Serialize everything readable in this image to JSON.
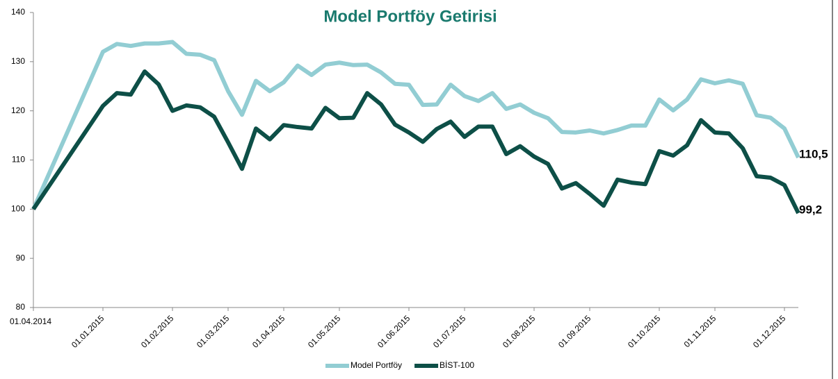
{
  "chart_data": {
    "type": "line",
    "title": "Model Portföy Getirisi",
    "categories": [
      "01.04.2014",
      null,
      null,
      null,
      null,
      "01.01.2015",
      null,
      null,
      null,
      null,
      "01.02.2015",
      null,
      null,
      null,
      "01.03.2015",
      null,
      null,
      null,
      "01.04.2015",
      null,
      null,
      null,
      "01.05.2015",
      null,
      null,
      null,
      null,
      "01.06.2015",
      null,
      null,
      null,
      "01.07.2015",
      null,
      null,
      null,
      null,
      "01.08.2015",
      null,
      null,
      null,
      "01.09.2015",
      null,
      null,
      null,
      null,
      "01.10.2015",
      null,
      null,
      null,
      "01.11.2015",
      null,
      null,
      null,
      null,
      "01.12.2015",
      null
    ],
    "series": [
      {
        "name": "Model Portföy",
        "color": "#92cdd3",
        "values": [
          100,
          106.4,
          112.8,
          119.2,
          125.6,
          132,
          133.6,
          133.2,
          133.7,
          133.7,
          134,
          131.6,
          131.4,
          130.3,
          124,
          119.2,
          126.1,
          124,
          125.8,
          129.2,
          127.3,
          129.4,
          129.8,
          129.3,
          129.4,
          127.8,
          125.5,
          125.3,
          121.2,
          121.3,
          125.3,
          123,
          122,
          123.6,
          120.4,
          121.3,
          119.6,
          118.5,
          115.7,
          115.6,
          116,
          115.4,
          116.1,
          117,
          117,
          122.3,
          120.1,
          122.3,
          126.4,
          125.6,
          126.2,
          125.5,
          119.1,
          118.6,
          116.4,
          110.5
        ],
        "value_labels": [
          null,
          null,
          null,
          null,
          null,
          null,
          null,
          null,
          null,
          null,
          null,
          null,
          null,
          null,
          null,
          null,
          null,
          null,
          null,
          null,
          null,
          null,
          null,
          null,
          null,
          null,
          null,
          null,
          null,
          null,
          null,
          null,
          null,
          null,
          null,
          null,
          null,
          null,
          null,
          null,
          null,
          null,
          null,
          null,
          null,
          null,
          null,
          null,
          null,
          null,
          null,
          null,
          null,
          null,
          null,
          "110,5"
        ]
      },
      {
        "name": "BİST-100",
        "color": "#0d4f47",
        "values": [
          100,
          104.2,
          108.4,
          112.6,
          116.8,
          121,
          123.6,
          123.3,
          128,
          125.4,
          120,
          121.1,
          120.7,
          118.8,
          113.6,
          108.2,
          116.4,
          114.2,
          117.1,
          116.7,
          116.4,
          120.6,
          118.5,
          118.6,
          123.6,
          121.3,
          117.2,
          115.6,
          113.7,
          116.3,
          117.8,
          114.7,
          116.8,
          116.8,
          111.2,
          112.8,
          110.7,
          109.2,
          104.2,
          105.3,
          103.1,
          100.7,
          106,
          105.4,
          105.1,
          111.8,
          110.9,
          113,
          118.1,
          115.6,
          115.4,
          112.4,
          106.7,
          106.4,
          104.9,
          99.2
        ],
        "value_labels": [
          null,
          null,
          null,
          null,
          null,
          null,
          null,
          null,
          null,
          null,
          null,
          null,
          null,
          null,
          null,
          null,
          null,
          null,
          null,
          null,
          null,
          null,
          null,
          null,
          null,
          null,
          null,
          null,
          null,
          null,
          null,
          null,
          null,
          null,
          null,
          null,
          null,
          null,
          null,
          null,
          null,
          null,
          null,
          null,
          null,
          null,
          null,
          null,
          null,
          null,
          null,
          null,
          null,
          null,
          null,
          "99,2"
        ]
      }
    ],
    "ylim": [
      80,
      140
    ],
    "yticks": [
      80,
      90,
      100,
      110,
      120,
      130,
      140
    ],
    "grid": false,
    "legend": "bottom"
  }
}
